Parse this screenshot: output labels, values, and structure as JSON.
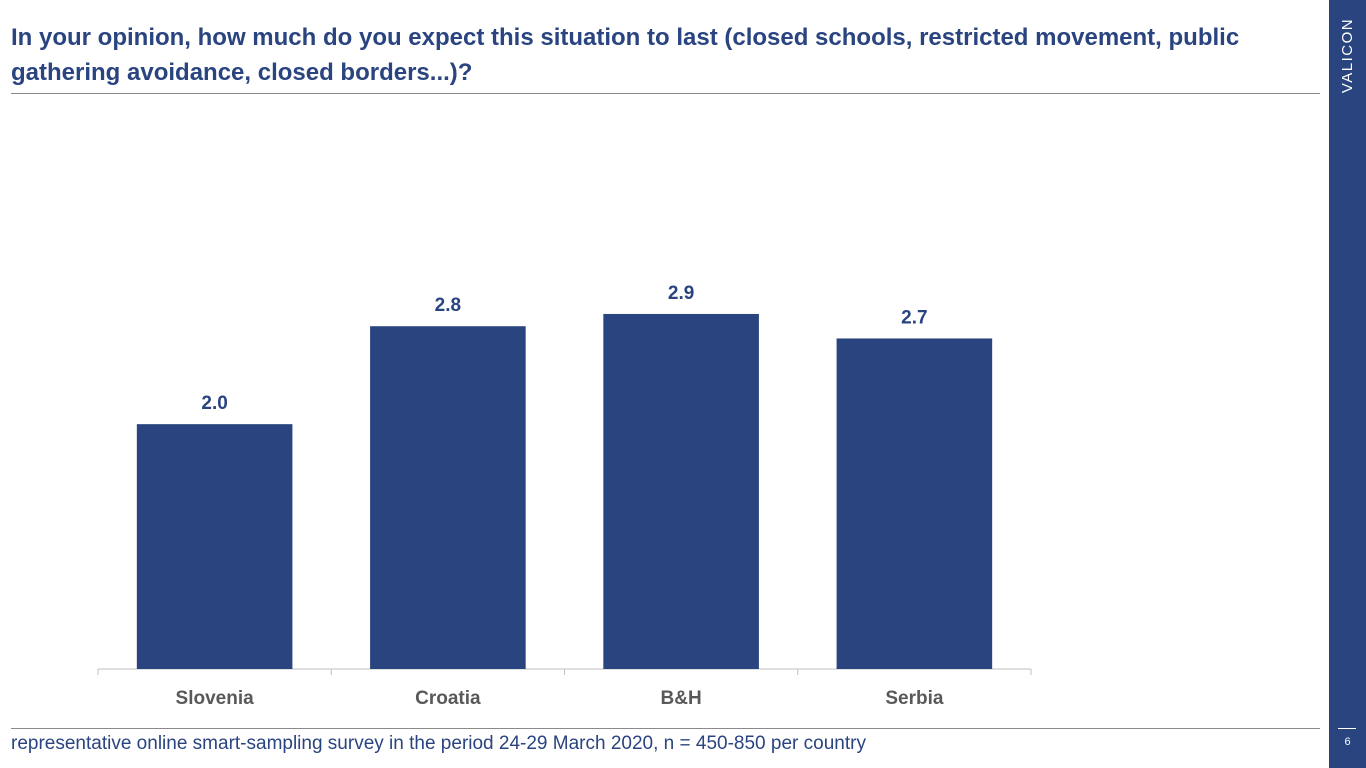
{
  "slide": {
    "title": "In your opinion, how much do you expect this situation to last (closed schools, restricted movement, public gathering avoidance, closed borders...)?",
    "footnote": "representative online smart-sampling survey in the period 24-29 March 2020, n = 450-850 per country",
    "brand": "VALICON",
    "page_number": "6"
  },
  "colors": {
    "accent": "#2a4480",
    "axis": "#bfbfbf",
    "tick_text": "#595959"
  },
  "chart_data": {
    "type": "bar",
    "categories": [
      "Slovenia",
      "Croatia",
      "B&H",
      "Serbia"
    ],
    "values": [
      2.0,
      2.8,
      2.9,
      2.7
    ],
    "data_labels": [
      "2.0",
      "2.8",
      "2.9",
      "2.7"
    ],
    "title": "",
    "xlabel": "",
    "ylabel": "",
    "ylim": [
      0,
      3.3
    ],
    "grid": false,
    "legend": "none"
  }
}
